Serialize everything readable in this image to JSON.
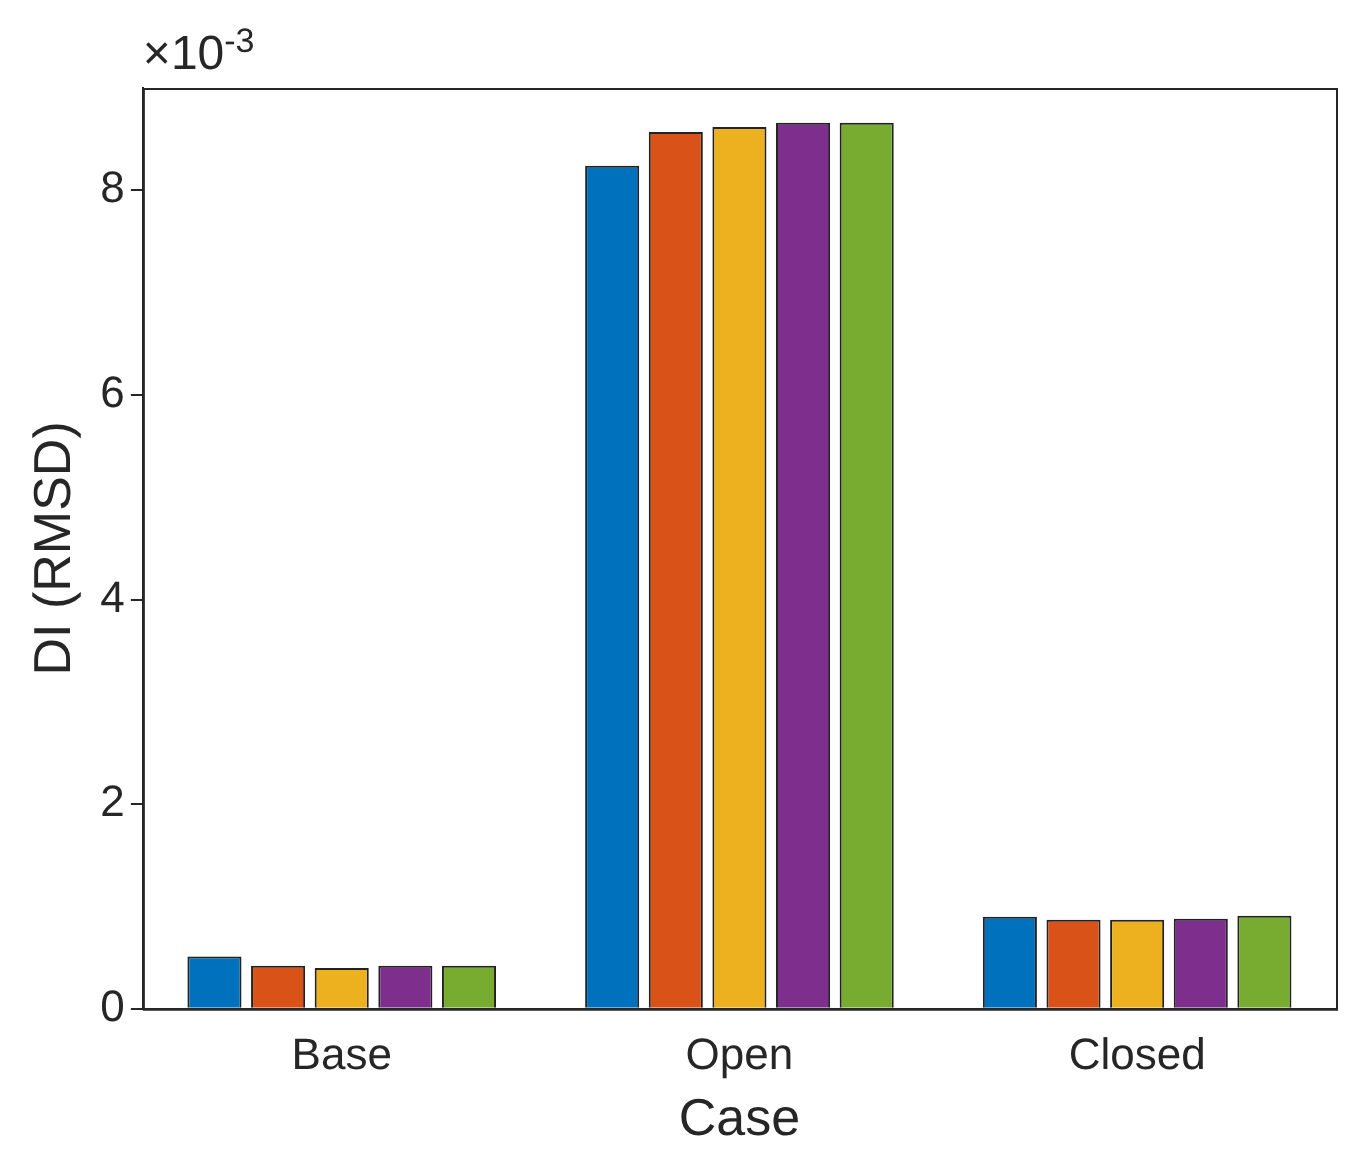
{
  "chart_data": {
    "type": "bar",
    "xlabel": "Case",
    "ylabel": "DI (RMSD)",
    "annotations": [
      "×10$^{-3}$"
    ],
    "categories": [
      "Base",
      "Open",
      "Closed"
    ],
    "series": [
      {
        "color": "#0072bd",
        "values": [
          0.51,
          8.24,
          0.9
        ]
      },
      {
        "color": "#d95319",
        "values": [
          0.42,
          8.57,
          0.87
        ]
      },
      {
        "color": "#edb120",
        "values": [
          0.4,
          8.62,
          0.87
        ]
      },
      {
        "color": "#7e2f8e",
        "values": [
          0.42,
          8.66,
          0.88
        ]
      },
      {
        "color": "#77ac30",
        "values": [
          0.42,
          8.66,
          0.91
        ]
      }
    ],
    "ylim": [
      0,
      9
    ],
    "yticks": [
      0,
      2,
      4,
      6,
      8
    ],
    "grid": false,
    "legend": false
  }
}
